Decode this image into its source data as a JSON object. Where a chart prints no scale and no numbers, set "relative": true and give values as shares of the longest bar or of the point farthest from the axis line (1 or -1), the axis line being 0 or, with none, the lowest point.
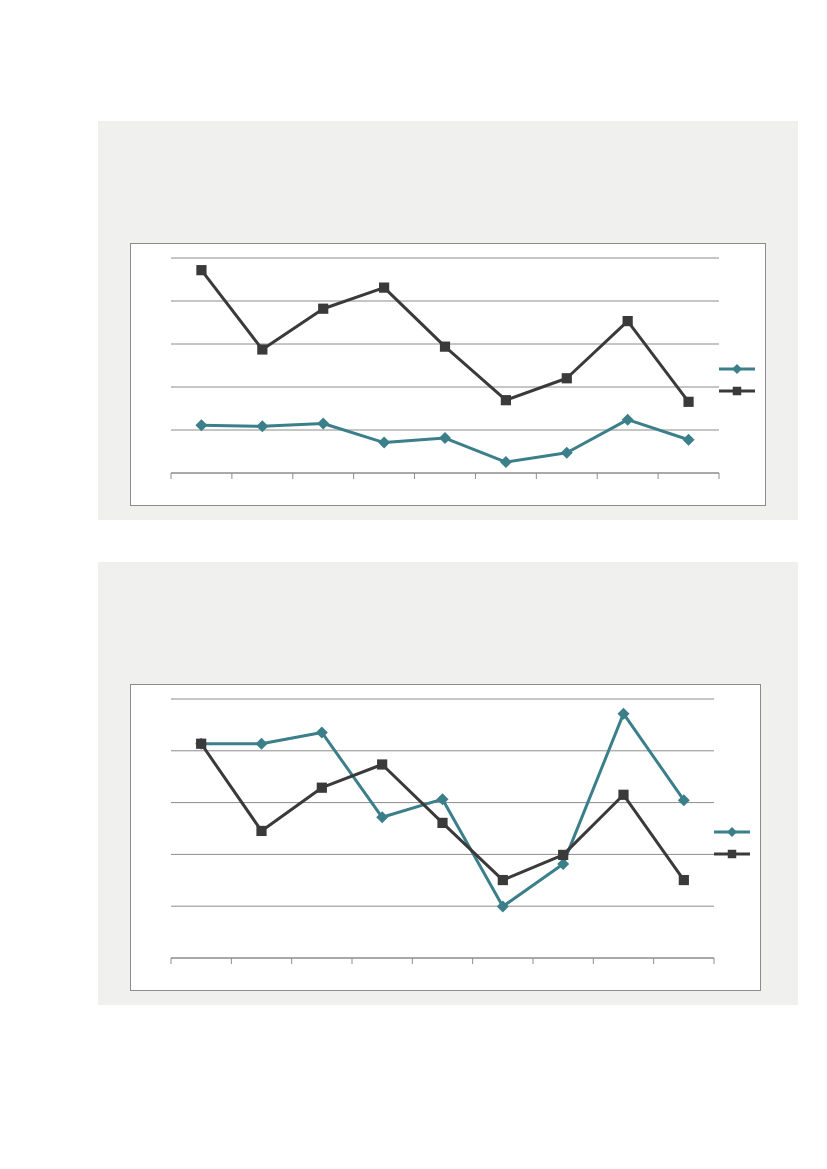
{
  "chart_data": [
    {
      "type": "line",
      "relative": true,
      "categories": [
        null,
        null,
        null,
        null,
        null,
        null,
        null,
        null,
        null
      ],
      "grid": "y",
      "series": [
        {
          "color": "#3b7f8a",
          "marker": "diamond",
          "values": [
            0.236,
            0.23,
            0.244,
            0.15,
            0.172,
            0.054,
            0.1,
            0.263,
            0.164
          ]
        },
        {
          "color": "#3a3a3a",
          "marker": "square",
          "values": [
            1,
            0.609,
            0.81,
            0.914,
            0.623,
            0.359,
            0.467,
            0.749,
            0.351
          ]
        }
      ]
    },
    {
      "type": "line",
      "relative": true,
      "categories": [
        null,
        null,
        null,
        null,
        null,
        null,
        null,
        null,
        null
      ],
      "grid": "y",
      "series": [
        {
          "color": "#3b7f8a",
          "marker": "diamond",
          "values": [
            0.877,
            0.877,
            0.923,
            0.576,
            0.65,
            0.211,
            0.385,
            1,
            0.646
          ]
        },
        {
          "color": "#3a3a3a",
          "marker": "square",
          "values": [
            0.877,
            0.52,
            0.697,
            0.792,
            0.553,
            0.319,
            0.422,
            0.668,
            0.319
          ]
        }
      ]
    }
  ]
}
